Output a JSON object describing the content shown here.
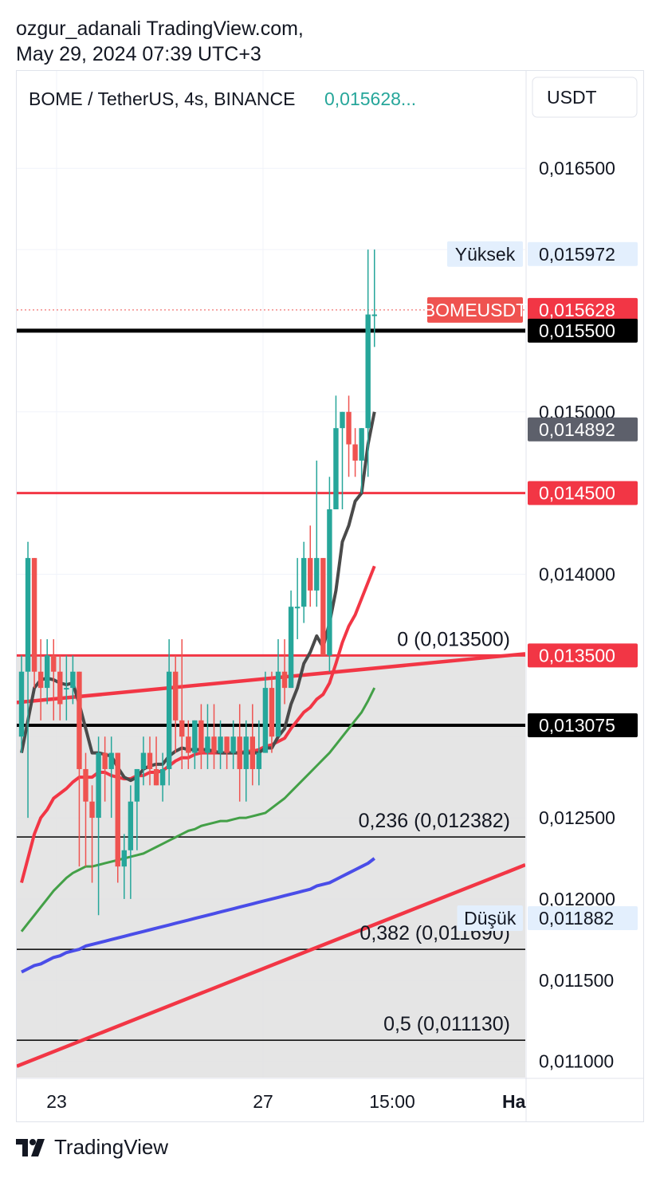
{
  "header": {
    "author_line": "ozgur_adanali TradingView.com,",
    "date_line": "May 29, 2024 07:39 UTC+3"
  },
  "footer": {
    "brand": "TradingView"
  },
  "chart_data": {
    "type": "candlestick",
    "symbol": "BOME / TetherUS, 4s, BINANCE",
    "last_price_short": "0,015628...",
    "currency": "USDT",
    "ylim": [
      0.0109,
      0.0171
    ],
    "y_ticks": [
      "0,016500",
      "0,015000",
      "0,014000",
      "0,012500",
      "0,012000",
      "0,011500",
      "0,011000"
    ],
    "x_ticks": [
      "23",
      "27",
      "15:00",
      "Ha"
    ],
    "colors": {
      "up": "#26a69a",
      "down": "#ef5350",
      "ema_black": "#4a4a4a",
      "ema_red": "#f23645",
      "ema_green": "#43a047",
      "ema_blue": "#4a4de8",
      "fib_zone": "#e0e0e0"
    },
    "price_labels": [
      {
        "tag": "Yüksek",
        "value": "0,015972",
        "style": "light"
      },
      {
        "tag": "BOMEUSDT",
        "value": "0,015628",
        "style": "red"
      },
      {
        "tag": "",
        "value": "0,015500",
        "style": "black"
      },
      {
        "tag": "",
        "value": "0,014892",
        "style": "gray"
      },
      {
        "tag": "",
        "value": "0,014500",
        "style": "red"
      },
      {
        "tag": "",
        "value": "0,013500",
        "style": "red"
      },
      {
        "tag": "",
        "value": "0,013075",
        "style": "black"
      },
      {
        "tag": "Düşük",
        "value": "0,011882",
        "style": "light"
      }
    ],
    "horizontal_levels": [
      {
        "price": 0.0155,
        "color": "#000000",
        "width": 5
      },
      {
        "price": 0.0145,
        "color": "#f23645",
        "width": 3
      },
      {
        "price": 0.01307,
        "color": "#000000",
        "width": 4
      }
    ],
    "fib_levels": [
      {
        "label": "0 (0,013500)",
        "price": 0.0135
      },
      {
        "label": "0,236 (0,012382)",
        "price": 0.012382
      },
      {
        "label": "0,382 (0,011690)",
        "price": 0.01169
      },
      {
        "label": "0,5 (0,011130)",
        "price": 0.01113
      }
    ],
    "trendlines": [
      {
        "from": [
          0,
          0.01321
        ],
        "to": [
          1.0,
          0.01351
        ],
        "color": "#f23645"
      },
      {
        "from": [
          0,
          0.01097
        ],
        "to": [
          1.0,
          0.01221
        ],
        "color": "#f23645"
      }
    ],
    "candles": [
      [
        0.013,
        0.0135,
        0.0129,
        0.0134
      ],
      [
        0.0134,
        0.0142,
        0.0125,
        0.0141
      ],
      [
        0.0141,
        0.0141,
        0.0133,
        0.0134
      ],
      [
        0.0134,
        0.0136,
        0.0131,
        0.0133
      ],
      [
        0.0133,
        0.0136,
        0.0132,
        0.0135
      ],
      [
        0.0135,
        0.0136,
        0.0131,
        0.0134
      ],
      [
        0.0134,
        0.0135,
        0.0131,
        0.0132
      ],
      [
        0.0133,
        0.0135,
        0.0131,
        0.0133
      ],
      [
        0.0133,
        0.0135,
        0.0132,
        0.0134
      ],
      [
        0.0134,
        0.0134,
        0.0122,
        0.0128
      ],
      [
        0.0128,
        0.0129,
        0.0122,
        0.0126
      ],
      [
        0.0126,
        0.0127,
        0.0121,
        0.0125
      ],
      [
        0.0125,
        0.013,
        0.0119,
        0.0129
      ],
      [
        0.0129,
        0.013,
        0.0126,
        0.0128
      ],
      [
        0.0128,
        0.013,
        0.0125,
        0.0129
      ],
      [
        0.0129,
        0.0129,
        0.0121,
        0.0122
      ],
      [
        0.0122,
        0.0124,
        0.012,
        0.0123
      ],
      [
        0.0123,
        0.0127,
        0.012,
        0.0126
      ],
      [
        0.0126,
        0.0128,
        0.0123,
        0.0128
      ],
      [
        0.0128,
        0.013,
        0.0127,
        0.0129
      ],
      [
        0.0129,
        0.013,
        0.0127,
        0.0128
      ],
      [
        0.0128,
        0.013,
        0.0127,
        0.0127
      ],
      [
        0.0127,
        0.0129,
        0.0126,
        0.0128
      ],
      [
        0.0128,
        0.0136,
        0.0127,
        0.0134
      ],
      [
        0.0134,
        0.0135,
        0.0129,
        0.0131
      ],
      [
        0.0131,
        0.0136,
        0.0128,
        0.013
      ],
      [
        0.013,
        0.0131,
        0.0128,
        0.0129
      ],
      [
        0.0129,
        0.0131,
        0.0128,
        0.0131
      ],
      [
        0.0131,
        0.0132,
        0.0128,
        0.0129
      ],
      [
        0.0129,
        0.0132,
        0.0128,
        0.013
      ],
      [
        0.013,
        0.0132,
        0.0128,
        0.0129
      ],
      [
        0.0129,
        0.0131,
        0.0128,
        0.013
      ],
      [
        0.013,
        0.013,
        0.0128,
        0.0129
      ],
      [
        0.0129,
        0.0131,
        0.0128,
        0.013
      ],
      [
        0.013,
        0.0132,
        0.0126,
        0.0128
      ],
      [
        0.0128,
        0.0131,
        0.0126,
        0.013
      ],
      [
        0.013,
        0.0132,
        0.0127,
        0.0128
      ],
      [
        0.0128,
        0.0131,
        0.0127,
        0.0129
      ],
      [
        0.0129,
        0.0134,
        0.0129,
        0.0133
      ],
      [
        0.0133,
        0.0134,
        0.0129,
        0.013
      ],
      [
        0.013,
        0.0136,
        0.013,
        0.0134
      ],
      [
        0.0134,
        0.0136,
        0.0132,
        0.0133
      ],
      [
        0.0133,
        0.0139,
        0.0133,
        0.0138
      ],
      [
        0.0138,
        0.0141,
        0.0136,
        0.0138
      ],
      [
        0.0138,
        0.0142,
        0.0137,
        0.0141
      ],
      [
        0.0141,
        0.0143,
        0.0138,
        0.0139
      ],
      [
        0.0139,
        0.0147,
        0.0138,
        0.0141
      ],
      [
        0.0141,
        0.0141,
        0.0135,
        0.0135
      ],
      [
        0.0135,
        0.0146,
        0.0134,
        0.0144
      ],
      [
        0.0144,
        0.0151,
        0.0144,
        0.0149
      ],
      [
        0.0149,
        0.015,
        0.0144,
        0.015
      ],
      [
        0.015,
        0.0151,
        0.0146,
        0.0148
      ],
      [
        0.0148,
        0.0149,
        0.0146,
        0.0147
      ],
      [
        0.0147,
        0.0149,
        0.0145,
        0.0149
      ],
      [
        0.0149,
        0.016,
        0.0146,
        0.0156
      ],
      [
        0.0156,
        0.016,
        0.0154,
        0.0156
      ]
    ],
    "ema_black": [
      0.0129,
      0.0131,
      0.0133,
      0.01335,
      0.01336,
      0.01335,
      0.01333,
      0.01332,
      0.01333,
      0.0132,
      0.01305,
      0.0129,
      0.0129,
      0.01289,
      0.01288,
      0.01281,
      0.01275,
      0.01273,
      0.01275,
      0.0128,
      0.01282,
      0.01283,
      0.01283,
      0.01288,
      0.01291,
      0.01293,
      0.01292,
      0.01292,
      0.01292,
      0.01292,
      0.01291,
      0.0129,
      0.0129,
      0.0129,
      0.0129,
      0.0129,
      0.0129,
      0.0129,
      0.01293,
      0.01293,
      0.013,
      0.01305,
      0.0132,
      0.0133,
      0.01345,
      0.01352,
      0.01362,
      0.01355,
      0.0137,
      0.0139,
      0.0142,
      0.0143,
      0.01445,
      0.0145,
      0.0148,
      0.015
    ],
    "ema_red": [
      0.0121,
      0.01225,
      0.0124,
      0.0125,
      0.01255,
      0.01262,
      0.01265,
      0.01268,
      0.01272,
      0.01275,
      0.01275,
      0.01275,
      0.01278,
      0.01278,
      0.01276,
      0.01275,
      0.01274,
      0.01274,
      0.01276,
      0.01276,
      0.01278,
      0.01278,
      0.01279,
      0.01282,
      0.01285,
      0.01287,
      0.01287,
      0.01289,
      0.0129,
      0.0129,
      0.0129,
      0.0129,
      0.0129,
      0.0129,
      0.0129,
      0.01291,
      0.01291,
      0.01292,
      0.01294,
      0.01295,
      0.01297,
      0.01299,
      0.01305,
      0.0131,
      0.01315,
      0.01318,
      0.01323,
      0.01326,
      0.01333,
      0.01345,
      0.01358,
      0.01368,
      0.01375,
      0.01385,
      0.01395,
      0.01405
    ],
    "ema_green": [
      0.0118,
      0.01185,
      0.0119,
      0.01195,
      0.012,
      0.01205,
      0.01209,
      0.01213,
      0.01216,
      0.01218,
      0.0122,
      0.0122,
      0.01221,
      0.01222,
      0.01223,
      0.01224,
      0.01225,
      0.01226,
      0.01227,
      0.01228,
      0.0123,
      0.01232,
      0.01234,
      0.01236,
      0.01238,
      0.0124,
      0.01242,
      0.01243,
      0.01245,
      0.01246,
      0.01247,
      0.01248,
      0.01248,
      0.01249,
      0.0125,
      0.0125,
      0.01251,
      0.01252,
      0.01253,
      0.01256,
      0.01259,
      0.01262,
      0.01266,
      0.0127,
      0.01274,
      0.01278,
      0.01282,
      0.01286,
      0.0129,
      0.01295,
      0.013,
      0.01305,
      0.0131,
      0.01315,
      0.01322,
      0.0133
    ],
    "ema_blue": [
      0.01155,
      0.01157,
      0.01159,
      0.0116,
      0.01162,
      0.01164,
      0.01165,
      0.01167,
      0.01168,
      0.01169,
      0.01171,
      0.01172,
      0.01173,
      0.01174,
      0.01175,
      0.01176,
      0.01177,
      0.01178,
      0.01179,
      0.0118,
      0.01181,
      0.01182,
      0.01183,
      0.01184,
      0.01185,
      0.01186,
      0.01187,
      0.01188,
      0.01189,
      0.0119,
      0.01191,
      0.01192,
      0.01193,
      0.01194,
      0.01195,
      0.01196,
      0.01197,
      0.01198,
      0.01199,
      0.012,
      0.01201,
      0.01202,
      0.01203,
      0.01204,
      0.01205,
      0.01206,
      0.01208,
      0.01209,
      0.0121,
      0.01212,
      0.01214,
      0.01216,
      0.01218,
      0.0122,
      0.01222,
      0.01225
    ]
  }
}
